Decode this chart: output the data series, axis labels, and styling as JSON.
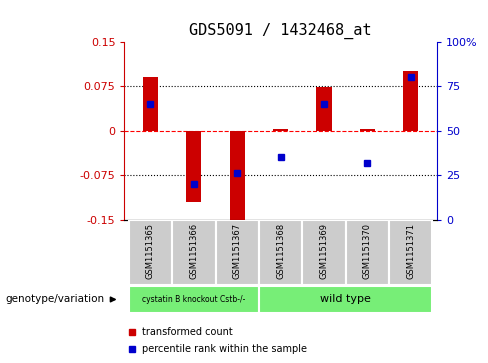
{
  "title": "GDS5091 / 1432468_at",
  "samples": [
    "GSM1151365",
    "GSM1151366",
    "GSM1151367",
    "GSM1151368",
    "GSM1151369",
    "GSM1151370",
    "GSM1151371"
  ],
  "bar_values": [
    0.09,
    -0.12,
    -0.155,
    0.003,
    0.073,
    0.003,
    0.1
  ],
  "percentile_ranks": [
    65,
    20,
    26,
    35,
    65,
    32,
    80
  ],
  "ylim": [
    -0.15,
    0.15
  ],
  "yticks_left": [
    -0.15,
    -0.075,
    0,
    0.075,
    0.15
  ],
  "yticks_right": [
    0,
    25,
    50,
    75,
    100
  ],
  "bar_color": "#cc0000",
  "dot_color": "#0000cc",
  "group1_label": "cystatin B knockout Cstb-/-",
  "group2_label": "wild type",
  "group_color": "#77ee77",
  "sample_bg_color": "#cccccc",
  "group_label": "genotype/variation",
  "legend_bar_label": "transformed count",
  "legend_dot_label": "percentile rank within the sample",
  "title_fontsize": 11,
  "tick_fontsize": 8,
  "axis_color_left": "#cc0000",
  "axis_color_right": "#0000cc"
}
